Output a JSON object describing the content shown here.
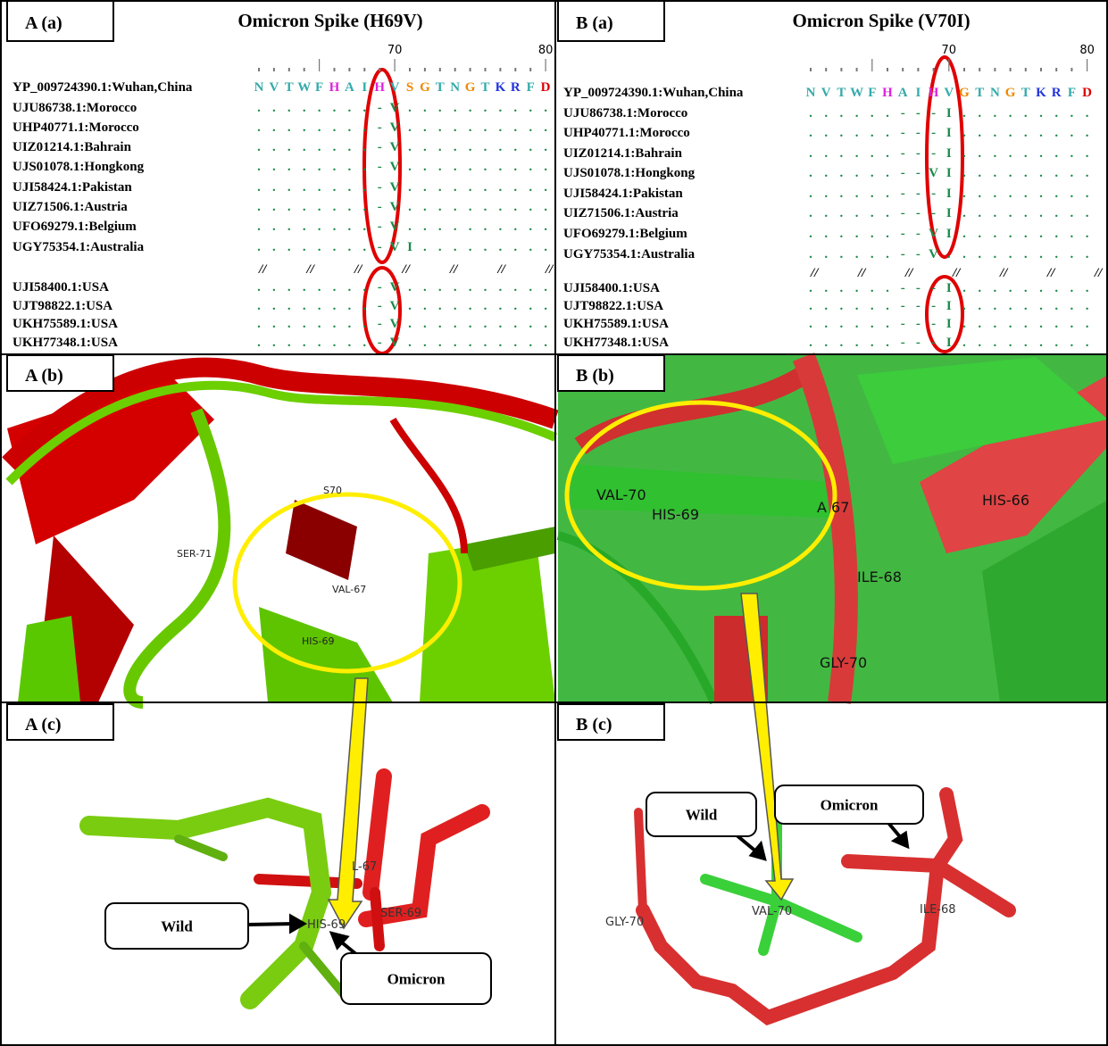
{
  "alignments": [
    {
      "label": "A (a)",
      "title": "Omicron Spike (H69V)",
      "ruler": [
        "70",
        "80"
      ],
      "reference": {
        "name": "YP_009724390.1:Wuhan,China",
        "residues": [
          "N",
          "V",
          "T",
          "W",
          "F",
          "H",
          "A",
          "I",
          "H",
          "V",
          "S",
          "G",
          "T",
          "N",
          "G",
          "T",
          "K",
          "R",
          "F",
          "D"
        ]
      },
      "rows": [
        {
          "name": "UJU86738.1:Morocco",
          "residues": "........-V.........."
        },
        {
          "name": "UHP40771.1:Morocco",
          "residues": "........-V.........."
        },
        {
          "name": "UIZ01214.1:Bahrain",
          "residues": "........-V.........."
        },
        {
          "name": "UJS01078.1:Hongkong",
          "residues": "........-V.........."
        },
        {
          "name": "UJI58424.1:Pakistan",
          "residues": "........-V.........."
        },
        {
          "name": "UIZ71506.1:Austria",
          "residues": "........-V.........."
        },
        {
          "name": "UFO69279.1:Belgium",
          "residues": "........-V.........."
        },
        {
          "name": "UGY75354.1:Australia",
          "residues": "........-VI........."
        },
        {
          "name": "UJI58400.1:USA",
          "residues": "........-V.........."
        },
        {
          "name": "UJT98822.1:USA",
          "residues": "........-V.........."
        },
        {
          "name": "UKH75589.1:USA",
          "residues": "........-V.........."
        },
        {
          "name": "UKH77348.1:USA",
          "residues": "........-V.........."
        }
      ],
      "separator": [
        "//",
        "//",
        "//",
        "//",
        "//",
        "//",
        "//"
      ]
    },
    {
      "label": "B (a)",
      "title": "Omicron Spike (V70I)",
      "ruler": [
        "70",
        "80"
      ],
      "reference": {
        "name": "YP_009724390.1:Wuhan,China",
        "residues": [
          "N",
          "V",
          "T",
          "W",
          "F",
          "H",
          "A",
          "I",
          "H",
          "V",
          "G",
          "T",
          "N",
          "G",
          "T",
          "K",
          "R",
          "F",
          "D"
        ]
      },
      "rows": [
        {
          "name": "UJU86738.1:Morocco",
          "residues": "......---I........."
        },
        {
          "name": "UHP40771.1:Morocco",
          "residues": "......---I........."
        },
        {
          "name": "UIZ01214.1:Bahrain",
          "residues": "......---I........."
        },
        {
          "name": "UJS01078.1:Hongkong",
          "residues": "......--VI........."
        },
        {
          "name": "UJI58424.1:Pakistan",
          "residues": "......---I........."
        },
        {
          "name": "UIZ71506.1:Austria",
          "residues": "......---I........."
        },
        {
          "name": "UFO69279.1:Belgium",
          "residues": "......--VI........."
        },
        {
          "name": "UGY75354.1:Australia",
          "residues": "......--V.........."
        },
        {
          "name": "UJI58400.1:USA",
          "residues": "......---I........."
        },
        {
          "name": "UJT98822.1:USA",
          "residues": "......---I........."
        },
        {
          "name": "UKH75589.1:USA",
          "residues": "......---I........."
        },
        {
          "name": "UKH77348.1:USA",
          "residues": "......---I........."
        }
      ],
      "separator": [
        "//",
        "//",
        "//",
        "//",
        "//",
        "//",
        "//"
      ]
    }
  ],
  "structures": [
    {
      "label": "A (b)",
      "residues": [
        "S70",
        "SER-71",
        "VAL-67",
        "HIS-69"
      ]
    },
    {
      "label": "B (b)",
      "residues": [
        "VAL-70",
        "HIS-69",
        "A  67",
        "HIS-66",
        "ILE-68",
        "GLY-70"
      ]
    }
  ],
  "closeups": [
    {
      "label": "A (c)",
      "residues": [
        "L-67",
        "HIS-69",
        "SER-69"
      ],
      "callouts": [
        "Wild",
        "Omicron"
      ]
    },
    {
      "label": "B (c)",
      "residues": [
        "GLY-70",
        "VAL-70",
        "ILE-68"
      ],
      "callouts": [
        "Wild",
        "Omicron"
      ]
    }
  ]
}
